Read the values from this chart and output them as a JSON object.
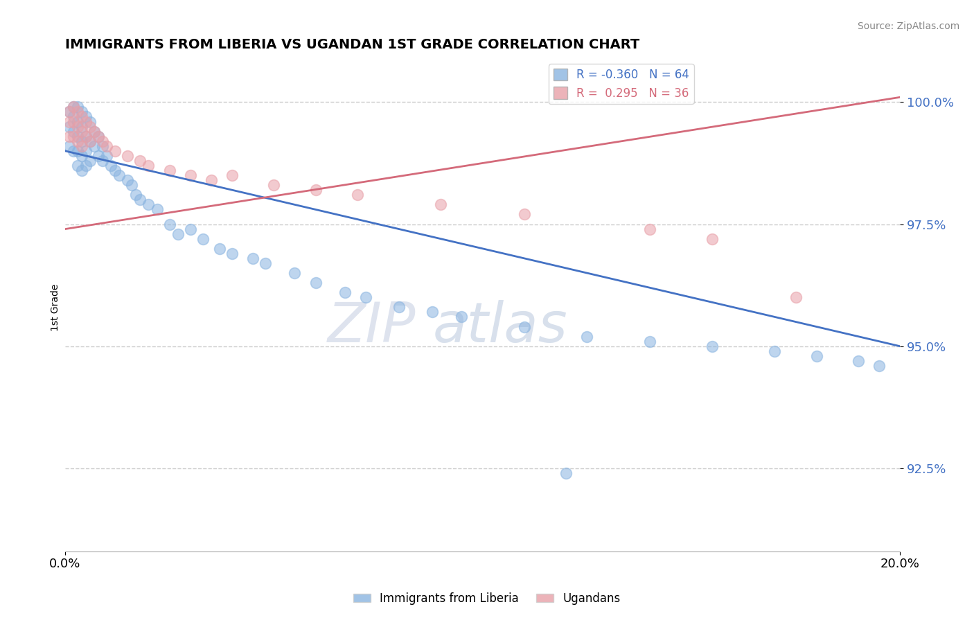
{
  "title": "IMMIGRANTS FROM LIBERIA VS UGANDAN 1ST GRADE CORRELATION CHART",
  "source": "Source: ZipAtlas.com",
  "ylabel": "1st Grade",
  "legend_labels": [
    "Immigrants from Liberia",
    "Ugandans"
  ],
  "r_blue": -0.36,
  "n_blue": 64,
  "r_pink": 0.295,
  "n_pink": 36,
  "xlim": [
    0.0,
    0.2
  ],
  "ylim": [
    0.908,
    1.008
  ],
  "yticks": [
    0.925,
    0.95,
    0.975,
    1.0
  ],
  "ytick_labels": [
    "92.5%",
    "95.0%",
    "97.5%",
    "100.0%"
  ],
  "xticks": [
    0.0,
    0.2
  ],
  "xtick_labels": [
    "0.0%",
    "20.0%"
  ],
  "blue_color": "#8ab4e0",
  "pink_color": "#e8a0a8",
  "trend_blue": "#4472c4",
  "trend_pink": "#d46a7a",
  "watermark_zip": "ZIP",
  "watermark_atlas": "atlas",
  "blue_scatter_x": [
    0.001,
    0.001,
    0.001,
    0.002,
    0.002,
    0.002,
    0.002,
    0.003,
    0.003,
    0.003,
    0.003,
    0.003,
    0.004,
    0.004,
    0.004,
    0.004,
    0.004,
    0.005,
    0.005,
    0.005,
    0.005,
    0.006,
    0.006,
    0.006,
    0.007,
    0.007,
    0.008,
    0.008,
    0.009,
    0.009,
    0.01,
    0.011,
    0.012,
    0.013,
    0.015,
    0.016,
    0.017,
    0.018,
    0.02,
    0.022,
    0.025,
    0.027,
    0.03,
    0.033,
    0.037,
    0.04,
    0.045,
    0.048,
    0.055,
    0.06,
    0.067,
    0.072,
    0.08,
    0.088,
    0.095,
    0.11,
    0.125,
    0.14,
    0.155,
    0.17,
    0.18,
    0.19,
    0.195,
    0.12
  ],
  "blue_scatter_y": [
    0.998,
    0.995,
    0.991,
    0.999,
    0.997,
    0.994,
    0.99,
    0.999,
    0.996,
    0.993,
    0.99,
    0.987,
    0.998,
    0.995,
    0.992,
    0.989,
    0.986,
    0.997,
    0.993,
    0.99,
    0.987,
    0.996,
    0.992,
    0.988,
    0.994,
    0.991,
    0.993,
    0.989,
    0.991,
    0.988,
    0.989,
    0.987,
    0.986,
    0.985,
    0.984,
    0.983,
    0.981,
    0.98,
    0.979,
    0.978,
    0.975,
    0.973,
    0.974,
    0.972,
    0.97,
    0.969,
    0.968,
    0.967,
    0.965,
    0.963,
    0.961,
    0.96,
    0.958,
    0.957,
    0.956,
    0.954,
    0.952,
    0.951,
    0.95,
    0.949,
    0.948,
    0.947,
    0.946,
    0.924
  ],
  "pink_scatter_x": [
    0.001,
    0.001,
    0.001,
    0.002,
    0.002,
    0.002,
    0.003,
    0.003,
    0.003,
    0.004,
    0.004,
    0.004,
    0.005,
    0.005,
    0.006,
    0.006,
    0.007,
    0.008,
    0.009,
    0.01,
    0.012,
    0.015,
    0.018,
    0.02,
    0.025,
    0.03,
    0.035,
    0.04,
    0.05,
    0.06,
    0.07,
    0.09,
    0.11,
    0.14,
    0.155,
    0.175
  ],
  "pink_scatter_y": [
    0.998,
    0.996,
    0.993,
    0.999,
    0.996,
    0.993,
    0.998,
    0.995,
    0.992,
    0.997,
    0.994,
    0.991,
    0.996,
    0.993,
    0.995,
    0.992,
    0.994,
    0.993,
    0.992,
    0.991,
    0.99,
    0.989,
    0.988,
    0.987,
    0.986,
    0.985,
    0.984,
    0.985,
    0.983,
    0.982,
    0.981,
    0.979,
    0.977,
    0.974,
    0.972,
    0.96
  ],
  "blue_trend_x": [
    0.0,
    0.2
  ],
  "blue_trend_y": [
    0.99,
    0.95
  ],
  "pink_trend_x": [
    0.0,
    0.2
  ],
  "pink_trend_y": [
    0.974,
    1.001
  ]
}
